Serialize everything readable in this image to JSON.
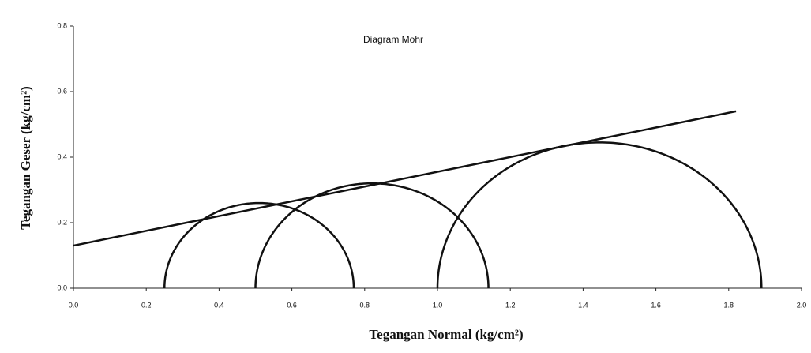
{
  "chart_data": {
    "type": "mohr",
    "title": "Diagram Mohr",
    "x_label": "Tegangan Normal (kg/cm²)",
    "y_label": "Tegangan Geser (kg/cm²)",
    "xlim": [
      0,
      2
    ],
    "ylim": [
      0,
      0.8
    ],
    "xticks": [
      {
        "value": 0,
        "label": "0.0"
      },
      {
        "value": 0.2,
        "label": "0.2"
      },
      {
        "value": 0.4,
        "label": "0.4"
      },
      {
        "value": 0.6,
        "label": "0.6"
      },
      {
        "value": 0.8,
        "label": "0.8"
      },
      {
        "value": 1,
        "label": "1.0"
      },
      {
        "value": 1.2,
        "label": "1.2"
      },
      {
        "value": 1.4,
        "label": "1.4"
      },
      {
        "value": 1.6,
        "label": "1.6"
      },
      {
        "value": 1.8,
        "label": "1.8"
      },
      {
        "value": 2,
        "label": "2.0"
      }
    ],
    "yticks": [
      {
        "value": 0,
        "label": "0.0"
      },
      {
        "value": 0.2,
        "label": "0.2"
      },
      {
        "value": 0.4,
        "label": "0.4"
      },
      {
        "value": 0.6,
        "label": "0.6"
      },
      {
        "value": 0.8,
        "label": "0.8"
      }
    ],
    "color": "#111111",
    "grid": false,
    "circles": [
      {
        "sigma3": 0.25,
        "sigma1": 0.77
      },
      {
        "sigma3": 0.5,
        "sigma1": 1.14
      },
      {
        "sigma3": 1.0,
        "sigma1": 1.89
      }
    ],
    "envelope": {
      "x": [
        0,
        1.82
      ],
      "y": [
        0.13,
        0.54
      ]
    }
  }
}
